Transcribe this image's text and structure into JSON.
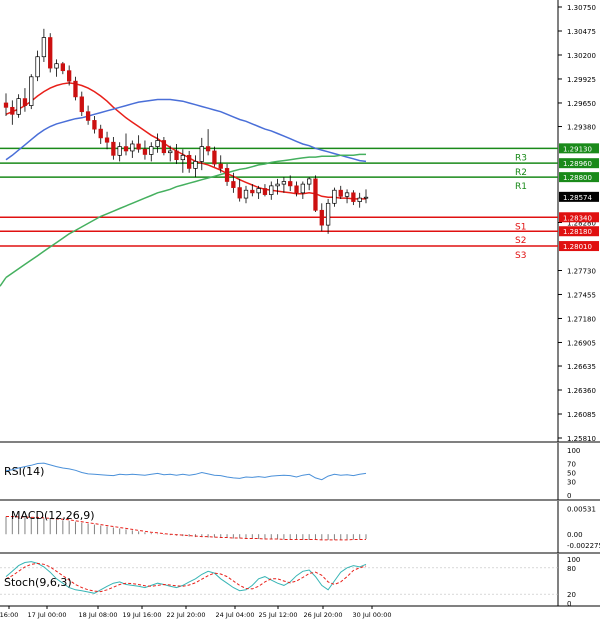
{
  "chart_data": {
    "type": "candlestick",
    "price_panel": {
      "ylim": [
        1.2581,
        1.3075
      ],
      "y_ticks": [
        "1.30750",
        "1.30475",
        "1.30200",
        "1.29925",
        "1.29650",
        "1.29380",
        "1.29130",
        "1.28960",
        "1.28800",
        "1.28574",
        "1.28340",
        "1.28280",
        "1.28180",
        "1.28010",
        "1.27730",
        "1.27455",
        "1.27180",
        "1.26905",
        "1.26635",
        "1.26360",
        "1.26085",
        "1.25810"
      ],
      "current_price": "1.28574",
      "current_price_value": 1.28574,
      "levels": [
        {
          "label": "R3",
          "price_label": "1.29130",
          "value": 1.2913,
          "type": "resistance"
        },
        {
          "label": "R2",
          "price_label": "1.28960",
          "value": 1.2896,
          "type": "resistance"
        },
        {
          "label": "R1",
          "price_label": "1.28800",
          "value": 1.288,
          "type": "resistance"
        },
        {
          "label": "S1",
          "price_label": "1.28340",
          "value": 1.2834,
          "type": "support"
        },
        {
          "label": "S2",
          "price_label": "1.28180",
          "value": 1.2818,
          "type": "support"
        },
        {
          "label": "S3",
          "price_label": "1.28010",
          "value": 1.2801,
          "type": "support"
        }
      ],
      "candles": [
        [
          1.2965,
          1.2976,
          1.295,
          1.296
        ],
        [
          1.296,
          1.2968,
          1.294,
          1.2952
        ],
        [
          1.2952,
          1.2975,
          1.2948,
          1.297
        ],
        [
          1.297,
          1.2982,
          1.2955,
          1.2962
        ],
        [
          1.2962,
          1.2998,
          1.2958,
          1.2995
        ],
        [
          1.2995,
          1.3025,
          1.299,
          1.3018
        ],
        [
          1.3018,
          1.305,
          1.3012,
          1.304
        ],
        [
          1.304,
          1.3045,
          1.3,
          1.3005
        ],
        [
          1.3005,
          1.3015,
          1.2995,
          1.301
        ],
        [
          1.301,
          1.3012,
          1.2998,
          1.3002
        ],
        [
          1.3002,
          1.3008,
          1.2985,
          1.299
        ],
        [
          1.299,
          1.2995,
          1.2968,
          1.2972
        ],
        [
          1.2972,
          1.2978,
          1.295,
          1.2955
        ],
        [
          1.2955,
          1.2962,
          1.294,
          1.2945
        ],
        [
          1.2945,
          1.295,
          1.293,
          1.2935
        ],
        [
          1.2935,
          1.294,
          1.2918,
          1.2925
        ],
        [
          1.2925,
          1.2932,
          1.2912,
          1.292
        ],
        [
          1.292,
          1.2926,
          1.29,
          1.2905
        ],
        [
          1.2905,
          1.292,
          1.2898,
          1.2915
        ],
        [
          1.2915,
          1.293,
          1.2905,
          1.291
        ],
        [
          1.291,
          1.2922,
          1.2902,
          1.2918
        ],
        [
          1.2918,
          1.2928,
          1.2908,
          1.2912
        ],
        [
          1.2912,
          1.2922,
          1.29,
          1.2906
        ],
        [
          1.2906,
          1.292,
          1.2898,
          1.2915
        ],
        [
          1.2915,
          1.293,
          1.2908,
          1.2922
        ],
        [
          1.2922,
          1.2926,
          1.2905,
          1.2908
        ],
        [
          1.2908,
          1.2916,
          1.2898,
          1.291
        ],
        [
          1.291,
          1.2918,
          1.2895,
          1.29
        ],
        [
          1.29,
          1.2912,
          1.2885,
          1.2905
        ],
        [
          1.2905,
          1.291,
          1.2885,
          1.289
        ],
        [
          1.289,
          1.2905,
          1.288,
          1.2898
        ],
        [
          1.2898,
          1.2925,
          1.2888,
          1.2915
        ],
        [
          1.2915,
          1.2935,
          1.2905,
          1.291
        ],
        [
          1.291,
          1.2915,
          1.2892,
          1.2895
        ],
        [
          1.2895,
          1.2905,
          1.2885,
          1.289
        ],
        [
          1.289,
          1.2895,
          1.287,
          1.2875
        ],
        [
          1.2875,
          1.2885,
          1.2862,
          1.2868
        ],
        [
          1.2868,
          1.2878,
          1.2852,
          1.2856
        ],
        [
          1.2856,
          1.287,
          1.285,
          1.2865
        ],
        [
          1.2865,
          1.2872,
          1.2858,
          1.2862
        ],
        [
          1.2862,
          1.287,
          1.2855,
          1.2867
        ],
        [
          1.2867,
          1.2872,
          1.2858,
          1.286
        ],
        [
          1.286,
          1.2875,
          1.2854,
          1.287
        ],
        [
          1.287,
          1.2878,
          1.286,
          1.2872
        ],
        [
          1.2872,
          1.288,
          1.2862,
          1.2875
        ],
        [
          1.2875,
          1.2882,
          1.2864,
          1.287
        ],
        [
          1.287,
          1.2875,
          1.2858,
          1.2862
        ],
        [
          1.2862,
          1.2875,
          1.2855,
          1.2872
        ],
        [
          1.2872,
          1.288,
          1.2865,
          1.2878
        ],
        [
          1.2878,
          1.2882,
          1.284,
          1.2842
        ],
        [
          1.2842,
          1.285,
          1.2818,
          1.2825
        ],
        [
          1.2825,
          1.2855,
          1.2815,
          1.285
        ],
        [
          1.285,
          1.2868,
          1.2846,
          1.2865
        ],
        [
          1.2865,
          1.287,
          1.2855,
          1.2858
        ],
        [
          1.2858,
          1.2866,
          1.285,
          1.2862
        ],
        [
          1.2862,
          1.2865,
          1.2848,
          1.2852
        ],
        [
          1.2852,
          1.2862,
          1.2845,
          1.2856
        ],
        [
          1.2856,
          1.2866,
          1.285,
          1.2857
        ]
      ],
      "moving_averages": [
        {
          "name": "MA fast",
          "color": "#e8201a",
          "values": [
            1.2952,
            1.2955,
            1.2958,
            1.2962,
            1.2967,
            1.2973,
            1.2978,
            1.2982,
            1.2985,
            1.2987,
            1.2988,
            1.2987,
            1.2985,
            1.2982,
            1.2978,
            1.2973,
            1.2967,
            1.296,
            1.2954,
            1.2948,
            1.2943,
            1.2938,
            1.2933,
            1.2928,
            1.2924,
            1.2919,
            1.2914,
            1.291,
            1.2906,
            1.2902,
            1.2898,
            1.2896,
            1.2894,
            1.2891,
            1.2888,
            1.2884,
            1.2881,
            1.2877,
            1.2874,
            1.2871,
            1.2868,
            1.2866,
            1.2865,
            1.2864,
            1.2863,
            1.2862,
            1.2861,
            1.2861,
            1.2862,
            1.2861,
            1.2858,
            1.2857,
            1.2857,
            1.2856,
            1.2856,
            1.2855,
            1.2855,
            1.2855
          ]
        },
        {
          "name": "MA medium",
          "color": "#4a6fd8",
          "values": [
            1.29,
            1.2905,
            1.2911,
            1.2917,
            1.2923,
            1.2929,
            1.2934,
            1.2938,
            1.2941,
            1.2943,
            1.2945,
            1.2947,
            1.2948,
            1.295,
            1.2952,
            1.2954,
            1.2956,
            1.2958,
            1.296,
            1.2962,
            1.2964,
            1.2966,
            1.2967,
            1.2968,
            1.2969,
            1.2969,
            1.2969,
            1.2968,
            1.2967,
            1.2965,
            1.2963,
            1.2961,
            1.2959,
            1.2957,
            1.2955,
            1.2952,
            1.2949,
            1.2946,
            1.2944,
            1.2941,
            1.2938,
            1.2935,
            1.2933,
            1.293,
            1.2927,
            1.2924,
            1.2921,
            1.2918,
            1.2916,
            1.2913,
            1.2911,
            1.2909,
            1.2907,
            1.2905,
            1.2903,
            1.2901,
            1.2899,
            1.2898
          ]
        },
        {
          "name": "MA slow",
          "color": "#45b05f",
          "values": [
            1.2765,
            1.277,
            1.2775,
            1.278,
            1.2785,
            1.279,
            1.2795,
            1.28,
            1.2805,
            1.281,
            1.2815,
            1.2819,
            1.2823,
            1.2827,
            1.2831,
            1.2835,
            1.2838,
            1.2841,
            1.2844,
            1.2847,
            1.285,
            1.2853,
            1.2856,
            1.2859,
            1.2862,
            1.2864,
            1.2866,
            1.2869,
            1.2871,
            1.2873,
            1.2875,
            1.2877,
            1.2879,
            1.2881,
            1.2883,
            1.2885,
            1.2887,
            1.2889,
            1.289,
            1.2892,
            1.2894,
            1.2895,
            1.2897,
            1.2898,
            1.2899,
            1.29,
            1.2901,
            1.2902,
            1.2903,
            1.2903,
            1.2904,
            1.2904,
            1.2904,
            1.2905,
            1.2905,
            1.2905,
            1.2906,
            1.2906
          ]
        }
      ]
    },
    "x_ticks": [
      "16:00",
      "17 Jul 00:00",
      "18 Jul 08:00",
      "19 Jul 16:00",
      "22 Jul 20:00",
      "24 Jul 04:00",
      "25 Jul 12:00",
      "26 Jul 20:00",
      "30 Jul 00:00"
    ],
    "rsi_panel": {
      "label": "RSI(14)",
      "ylim": [
        0,
        100
      ],
      "y_ticks": [
        "100",
        "70",
        "50",
        "30",
        "0"
      ],
      "line_color": "#4a90d9",
      "values": [
        54,
        56,
        60,
        63,
        66,
        70,
        71,
        67,
        63,
        60,
        58,
        55,
        50,
        47,
        46,
        45,
        44,
        43,
        46,
        45,
        46,
        45,
        44,
        46,
        48,
        45,
        46,
        44,
        46,
        44,
        46,
        50,
        47,
        44,
        43,
        40,
        38,
        37,
        40,
        39,
        41,
        39,
        42,
        43,
        44,
        43,
        40,
        44,
        46,
        38,
        34,
        42,
        46,
        44,
        45,
        43,
        46,
        48
      ]
    },
    "macd_panel": {
      "label": "MACD(12,26,9)",
      "y_ticks": [
        "0.00531",
        "0.00",
        "-0.002275"
      ],
      "ylim": [
        -0.0033,
        0.0063
      ],
      "histogram": [
        0.0037,
        0.0037,
        0.0036,
        0.0036,
        0.0035,
        0.0034,
        0.0033,
        0.0032,
        0.0031,
        0.0029,
        0.0028,
        0.0026,
        0.0024,
        0.0022,
        0.002,
        0.0018,
        0.0016,
        0.0014,
        0.0012,
        0.001,
        0.0008,
        0.0006,
        0.0004,
        0.0002,
        0.0001,
        -0.0001,
        -0.0002,
        -0.0003,
        -0.0004,
        -0.0005,
        -0.0006,
        -0.0006,
        -0.0007,
        -0.0007,
        -0.0008,
        -0.0008,
        -0.0009,
        -0.0009,
        -0.001,
        -0.001,
        -0.001,
        -0.0011,
        -0.0011,
        -0.0011,
        -0.0011,
        -0.0011,
        -0.0011,
        -0.0012,
        -0.0012,
        -0.0012,
        -0.0012,
        -0.0012,
        -0.0012,
        -0.0011,
        -0.0011,
        -0.0011,
        -0.0011,
        -0.001
      ],
      "signal": [
        0.0037,
        0.0037,
        0.0036,
        0.0036,
        0.0035,
        0.0035,
        0.0034,
        0.0033,
        0.0032,
        0.0031,
        0.003,
        0.0028,
        0.0026,
        0.0024,
        0.0022,
        0.002,
        0.0018,
        0.0016,
        0.0014,
        0.0012,
        0.001,
        0.0008,
        0.0006,
        0.0004,
        0.0003,
        0.0001,
        0.0,
        -0.0001,
        -0.0002,
        -0.0003,
        -0.0004,
        -0.0005,
        -0.0005,
        -0.0006,
        -0.0007,
        -0.0007,
        -0.0008,
        -0.0008,
        -0.0009,
        -0.0009,
        -0.0009,
        -0.001,
        -0.001,
        -0.001,
        -0.0011,
        -0.0011,
        -0.0011,
        -0.0011,
        -0.0011,
        -0.0011,
        -0.0012,
        -0.0012,
        -0.0012,
        -0.0012,
        -0.0012,
        -0.0011,
        -0.0011,
        -0.0011
      ],
      "histogram_color": "#808080",
      "signal_color": "#e8201a"
    },
    "stoch_panel": {
      "label": "Stoch(9,6,3)",
      "ylim": [
        0,
        100
      ],
      "y_ticks": [
        "100",
        "80",
        "20",
        "0"
      ],
      "k_color": "#38b5b5",
      "d_color": "#e8201a",
      "k": [
        60,
        72,
        85,
        92,
        94,
        90,
        82,
        70,
        55,
        45,
        35,
        30,
        28,
        25,
        22,
        30,
        38,
        45,
        48,
        42,
        40,
        38,
        35,
        40,
        45,
        42,
        38,
        35,
        40,
        48,
        55,
        65,
        72,
        68,
        55,
        45,
        35,
        28,
        30,
        40,
        55,
        60,
        52,
        45,
        40,
        48,
        62,
        72,
        75,
        60,
        40,
        30,
        50,
        70,
        80,
        85,
        82,
        88
      ],
      "d": [
        55,
        62,
        72,
        82,
        88,
        90,
        88,
        82,
        72,
        62,
        52,
        42,
        35,
        30,
        27,
        26,
        30,
        36,
        42,
        45,
        44,
        42,
        39,
        38,
        40,
        42,
        41,
        39,
        38,
        41,
        46,
        54,
        62,
        68,
        66,
        60,
        50,
        40,
        33,
        32,
        38,
        48,
        55,
        55,
        50,
        46,
        50,
        58,
        67,
        70,
        63,
        48,
        42,
        48,
        60,
        74,
        80,
        84
      ]
    }
  }
}
